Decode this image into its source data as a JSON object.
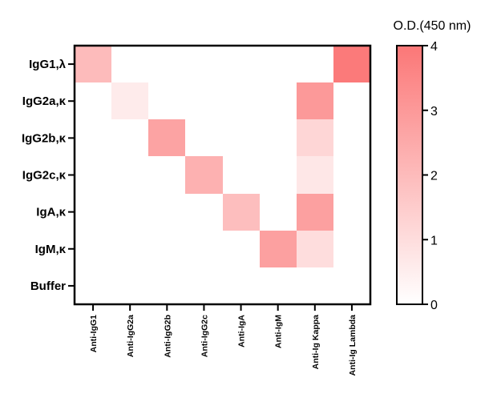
{
  "chart_data": {
    "type": "heatmap",
    "rows": [
      "IgG1,λ",
      "IgG2a,κ",
      "IgG2b,κ",
      "IgG2c,κ",
      "IgA,κ",
      "IgM,κ",
      "Buffer"
    ],
    "columns": [
      "Anti-IgG1",
      "Anti-IgG2a",
      "Anti-IgG2b",
      "Anti-IgG2c",
      "Anti-IgA",
      "Anti-IgM",
      "Anti-Ig Kappa",
      "Anti-Ig Lambda"
    ],
    "values": [
      [
        2.0,
        0.0,
        0.0,
        0.0,
        0.0,
        0.0,
        0.0,
        3.9
      ],
      [
        0.0,
        0.6,
        0.0,
        0.0,
        0.0,
        0.0,
        3.0,
        0.0
      ],
      [
        0.0,
        0.0,
        2.7,
        0.0,
        0.0,
        0.0,
        1.2,
        0.0
      ],
      [
        0.0,
        0.0,
        0.0,
        2.3,
        0.0,
        0.0,
        0.7,
        0.0
      ],
      [
        0.0,
        0.0,
        0.0,
        0.0,
        1.9,
        0.0,
        2.8,
        0.0
      ],
      [
        0.0,
        0.0,
        0.0,
        0.0,
        0.0,
        2.8,
        1.0,
        0.0
      ],
      [
        0.0,
        0.0,
        0.0,
        0.0,
        0.0,
        0.0,
        0.0,
        0.0
      ]
    ],
    "colorbar": {
      "title": "O.D.(450 nm)",
      "range": [
        0,
        4
      ],
      "ticks": [
        "0",
        "1",
        "2",
        "3",
        "4"
      ],
      "color_low": "#ffffff",
      "color_high": "#fb7777"
    },
    "grid": false
  }
}
